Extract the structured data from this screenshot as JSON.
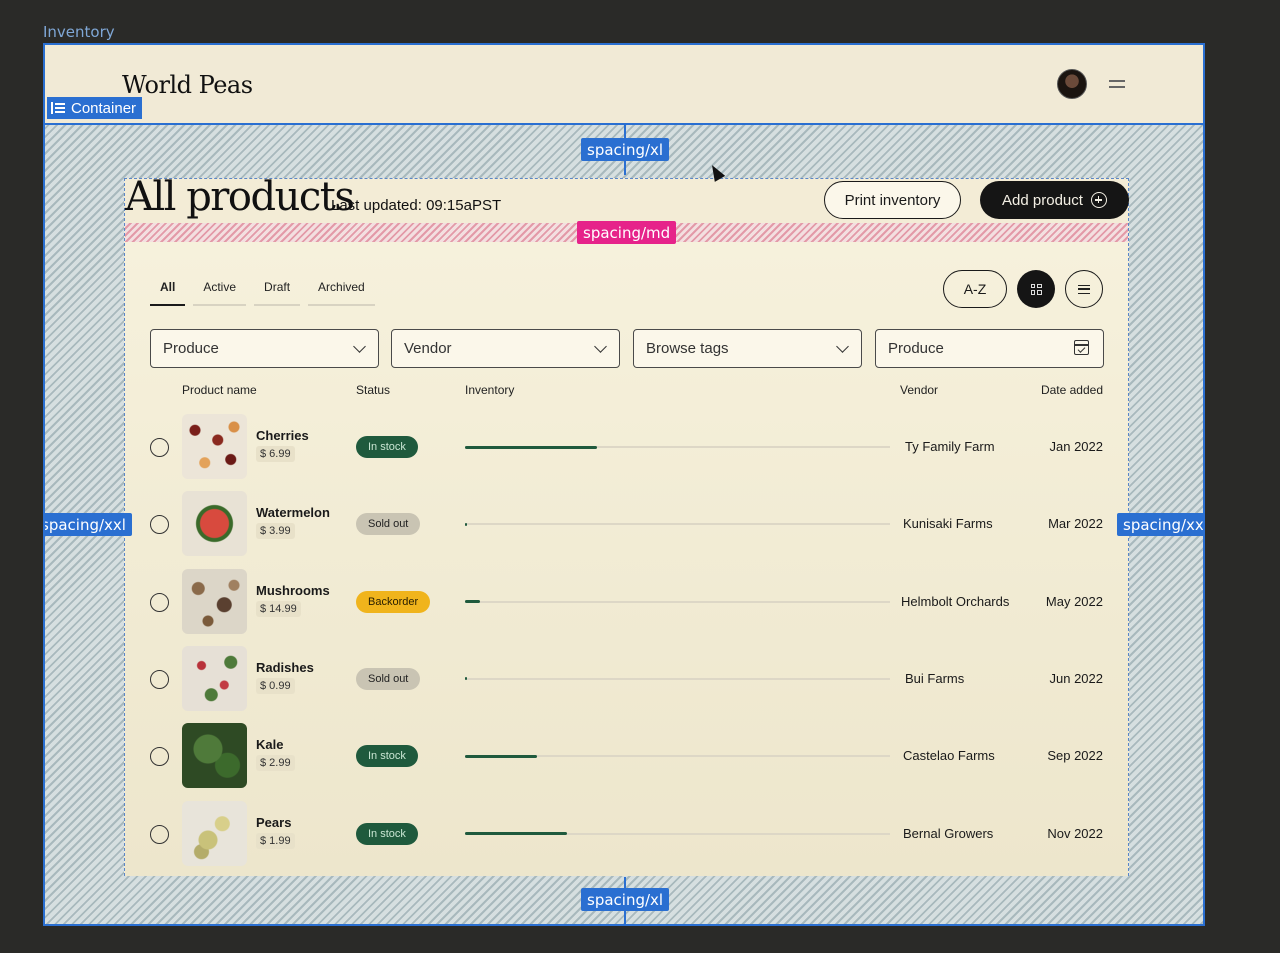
{
  "frame": {
    "label": "Inventory"
  },
  "header": {
    "brand": "World Peas",
    "container_tag": "Container"
  },
  "spacing_tags": {
    "top": "spacing/xl",
    "md": "spacing/md",
    "left": "spacing/xxl",
    "right": "spacing/xxl",
    "bottom": "spacing/xl"
  },
  "page": {
    "title": "All products",
    "last_updated": "Last updated: 09:15aPST",
    "print_label": "Print inventory",
    "add_label": "Add product"
  },
  "tabs": [
    {
      "label": "All",
      "active": true
    },
    {
      "label": "Active",
      "active": false
    },
    {
      "label": "Draft",
      "active": false
    },
    {
      "label": "Archived",
      "active": false
    }
  ],
  "sort_label": "A-Z",
  "filters": [
    {
      "value": "Produce",
      "icon": "chevron-down-icon"
    },
    {
      "value": "Vendor",
      "icon": "chevron-down-icon"
    },
    {
      "value": "Browse tags",
      "icon": "chevron-down-icon"
    },
    {
      "value": "Produce",
      "icon": "calendar-icon"
    }
  ],
  "columns": {
    "product": "Product name",
    "status": "Status",
    "inventory": "Inventory",
    "vendor": "Vendor",
    "date": "Date added"
  },
  "products": [
    {
      "name": "Cherries",
      "price": "$ 6.99",
      "status": "In stock",
      "status_kind": "green",
      "inventory": 0.31,
      "vendor": "Ty Family Farm",
      "date": "Jan 2022"
    },
    {
      "name": "Watermelon",
      "price": "$ 3.99",
      "status": "Sold out",
      "status_kind": "grey",
      "inventory": 0.0,
      "vendor": "Kunisaki Farms",
      "date": "Mar 2022"
    },
    {
      "name": "Mushrooms",
      "price": "$ 14.99",
      "status": "Backorder",
      "status_kind": "yellow",
      "inventory": 0.035,
      "vendor": "Helmbolt Orchards",
      "date": "May 2022"
    },
    {
      "name": "Radishes",
      "price": "$ 0.99",
      "status": "Sold out",
      "status_kind": "grey",
      "inventory": 0.0,
      "vendor": "Bui Farms",
      "date": "Jun 2022"
    },
    {
      "name": "Kale",
      "price": "$ 2.99",
      "status": "In stock",
      "status_kind": "green",
      "inventory": 0.17,
      "vendor": "Castelao Farms",
      "date": "Sep 2022"
    },
    {
      "name": "Pears",
      "price": "$ 1.99",
      "status": "In stock",
      "status_kind": "green",
      "inventory": 0.24,
      "vendor": "Bernal Growers",
      "date": "Nov 2022"
    }
  ],
  "colors": {
    "in_stock": "#1f5a3d",
    "sold_out": "#c9c4b3",
    "backorder": "#f0b41c",
    "selection": "#2a6fd1",
    "spacing_md": "#e6238a"
  }
}
